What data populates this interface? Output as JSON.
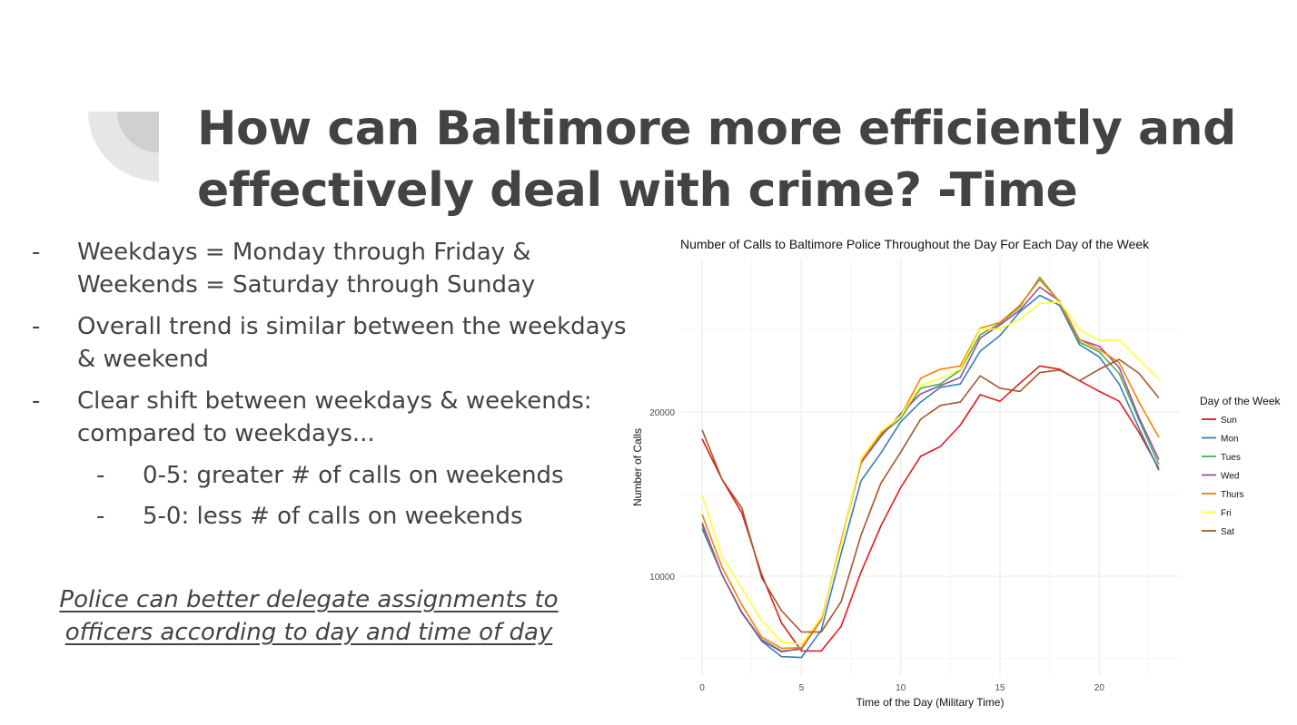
{
  "slide": {
    "title": "How can Baltimore more efficiently and effectively deal with crime? -Time",
    "bullets": [
      {
        "dash": "-",
        "text": "Weekdays = Monday through Friday & Weekends = Saturday through Sunday"
      },
      {
        "dash": "-",
        "text": "Overall trend is similar between the weekdays & weekend"
      },
      {
        "dash": "-",
        "text": "Clear shift between weekdays & weekends: compared to weekdays..."
      }
    ],
    "sub_bullets": [
      {
        "dash": "-",
        "text": "0-5: greater # of calls on weekends"
      },
      {
        "dash": "-",
        "text": "5-0: less # of calls on weekends"
      }
    ],
    "conclusion": "Police can better delegate assignments to officers according to day and time of day",
    "text_color": "#434343"
  },
  "chart_data": {
    "type": "line",
    "title": "Number of Calls to Baltimore Police Throughout the Day For Each Day of the Week",
    "xlabel": "Time of the Day (Military Time)",
    "ylabel": "Number of Calls",
    "xlim": [
      -1.1,
      24.1
    ],
    "ylim": [
      3923,
      29337
    ],
    "x_ticks": [
      0,
      5,
      10,
      15,
      20
    ],
    "x_tick_labels": [
      "0",
      "5",
      "10",
      "15",
      "20"
    ],
    "y_ticks": [
      10000,
      20000
    ],
    "y_tick_labels": [
      "10000",
      "20000"
    ],
    "grid": true,
    "legend_title": "Day of the Week",
    "legend_position": "right",
    "x": [
      0,
      1,
      2,
      3,
      4,
      5,
      6,
      7,
      8,
      9,
      10,
      11,
      12,
      13,
      14,
      15,
      16,
      17,
      18,
      19,
      20,
      21,
      22,
      23
    ],
    "series": [
      {
        "name": "Sun",
        "color": "#e41a1c",
        "values": [
          18350,
          15900,
          13850,
          10100,
          7150,
          5450,
          5450,
          6950,
          10250,
          13050,
          15400,
          17300,
          17900,
          19200,
          21050,
          20650,
          21750,
          22800,
          22600,
          21900,
          21250,
          20650,
          18750,
          16550
        ]
      },
      {
        "name": "Mon",
        "color": "#377eb8",
        "values": [
          12900,
          10100,
          7800,
          6050,
          5100,
          5050,
          6700,
          11400,
          15800,
          17500,
          19400,
          20600,
          21500,
          21700,
          23700,
          24650,
          26100,
          27100,
          26500,
          24100,
          23350,
          21700,
          19000,
          16450
        ]
      },
      {
        "name": "Tues",
        "color": "#4daf4a",
        "values": [
          13100,
          10100,
          7800,
          6150,
          5450,
          5550,
          7350,
          12100,
          17000,
          18600,
          19600,
          21450,
          21700,
          22550,
          24700,
          25400,
          26400,
          28200,
          26700,
          24250,
          23650,
          22350,
          19500,
          16800
        ]
      },
      {
        "name": "Wed",
        "color": "#984ea3",
        "values": [
          13250,
          10100,
          7750,
          6100,
          5400,
          5600,
          7350,
          12000,
          16900,
          18500,
          19900,
          21100,
          21600,
          22100,
          24500,
          25300,
          26200,
          27600,
          26750,
          24400,
          24000,
          22700,
          19650,
          17100
        ]
      },
      {
        "name": "Thurs",
        "color": "#ff7f00",
        "values": [
          13750,
          10550,
          8250,
          6300,
          5600,
          5650,
          7350,
          12100,
          17000,
          18700,
          19750,
          22050,
          22600,
          22800,
          25100,
          25450,
          26500,
          28050,
          26700,
          24400,
          23800,
          23000,
          20600,
          18450
        ]
      },
      {
        "name": "Fri",
        "color": "#ffff33",
        "values": [
          14900,
          11200,
          9250,
          7300,
          6000,
          5850,
          7500,
          11900,
          17150,
          18800,
          19750,
          21600,
          22050,
          22600,
          25050,
          25050,
          25650,
          26600,
          26700,
          25000,
          24350,
          24400,
          23200,
          22000
        ]
      },
      {
        "name": "Sat",
        "color": "#a65628",
        "values": [
          18900,
          15900,
          14150,
          9900,
          7900,
          6600,
          6600,
          8450,
          12500,
          15650,
          17550,
          19550,
          20400,
          20600,
          22200,
          21450,
          21250,
          22400,
          22550,
          21900,
          22600,
          23200,
          22350,
          20850
        ]
      }
    ]
  }
}
